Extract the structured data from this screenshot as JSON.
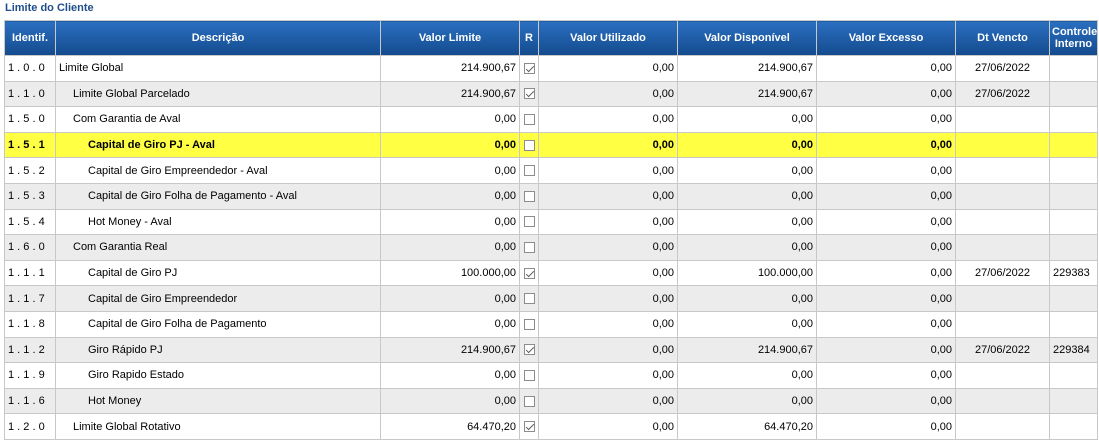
{
  "title": "Limite do Cliente",
  "headers": {
    "identif": "Identif.",
    "descricao": "Descrição",
    "valor_limite": "Valor Limite",
    "r": "R",
    "valor_utilizado": "Valor Utilizado",
    "valor_disponivel": "Valor Disponível",
    "valor_excesso": "Valor Excesso",
    "dt_vencto": "Dt Vencto",
    "controle_interno": "Controle Interno"
  },
  "rows": [
    {
      "id": "1 . 0 . 0",
      "desc": "Limite Global",
      "level": 1,
      "limite": "214.900,67",
      "r": true,
      "utilizado": "0,00",
      "disponivel": "214.900,67",
      "excesso": "0,00",
      "vencto": "27/06/2022",
      "controle": "",
      "highlight": false
    },
    {
      "id": "1 . 1 . 0",
      "desc": "Limite Global Parcelado",
      "level": 2,
      "limite": "214.900,67",
      "r": true,
      "utilizado": "0,00",
      "disponivel": "214.900,67",
      "excesso": "0,00",
      "vencto": "27/06/2022",
      "controle": "",
      "highlight": false
    },
    {
      "id": "1 . 5 . 0",
      "desc": "Com Garantia de Aval",
      "level": 2,
      "limite": "0,00",
      "r": false,
      "utilizado": "0,00",
      "disponivel": "0,00",
      "excesso": "0,00",
      "vencto": "",
      "controle": "",
      "highlight": false
    },
    {
      "id": "1 . 5 . 1",
      "desc": "Capital de Giro PJ - Aval",
      "level": 3,
      "limite": "0,00",
      "r": false,
      "utilizado": "0,00",
      "disponivel": "0,00",
      "excesso": "0,00",
      "vencto": "",
      "controle": "",
      "highlight": true
    },
    {
      "id": "1 . 5 . 2",
      "desc": "Capital de Giro Empreendedor - Aval",
      "level": 3,
      "limite": "0,00",
      "r": false,
      "utilizado": "0,00",
      "disponivel": "0,00",
      "excesso": "0,00",
      "vencto": "",
      "controle": "",
      "highlight": false
    },
    {
      "id": "1 . 5 . 3",
      "desc": "Capital de Giro Folha de Pagamento - Aval",
      "level": 3,
      "limite": "0,00",
      "r": false,
      "utilizado": "0,00",
      "disponivel": "0,00",
      "excesso": "0,00",
      "vencto": "",
      "controle": "",
      "highlight": false
    },
    {
      "id": "1 . 5 . 4",
      "desc": "Hot Money - Aval",
      "level": 3,
      "limite": "0,00",
      "r": false,
      "utilizado": "0,00",
      "disponivel": "0,00",
      "excesso": "0,00",
      "vencto": "",
      "controle": "",
      "highlight": false
    },
    {
      "id": "1 . 6 . 0",
      "desc": "Com Garantia Real",
      "level": 2,
      "limite": "0,00",
      "r": false,
      "utilizado": "0,00",
      "disponivel": "0,00",
      "excesso": "0,00",
      "vencto": "",
      "controle": "",
      "highlight": false
    },
    {
      "id": "1 . 1 . 1",
      "desc": "Capital de Giro PJ",
      "level": 3,
      "limite": "100.000,00",
      "r": true,
      "utilizado": "0,00",
      "disponivel": "100.000,00",
      "excesso": "0,00",
      "vencto": "27/06/2022",
      "controle": "229383",
      "highlight": false
    },
    {
      "id": "1 . 1 . 7",
      "desc": "Capital de Giro Empreendedor",
      "level": 3,
      "limite": "0,00",
      "r": false,
      "utilizado": "0,00",
      "disponivel": "0,00",
      "excesso": "0,00",
      "vencto": "",
      "controle": "",
      "highlight": false
    },
    {
      "id": "1 . 1 . 8",
      "desc": "Capital de Giro Folha de Pagamento",
      "level": 3,
      "limite": "0,00",
      "r": false,
      "utilizado": "0,00",
      "disponivel": "0,00",
      "excesso": "0,00",
      "vencto": "",
      "controle": "",
      "highlight": false
    },
    {
      "id": "1 . 1 . 2",
      "desc": "Giro Rápido PJ",
      "level": 3,
      "limite": "214.900,67",
      "r": true,
      "utilizado": "0,00",
      "disponivel": "214.900,67",
      "excesso": "0,00",
      "vencto": "27/06/2022",
      "controle": "229384",
      "highlight": false
    },
    {
      "id": "1 . 1 . 9",
      "desc": "Giro Rapido Estado",
      "level": 3,
      "limite": "0,00",
      "r": false,
      "utilizado": "0,00",
      "disponivel": "0,00",
      "excesso": "0,00",
      "vencto": "",
      "controle": "",
      "highlight": false
    },
    {
      "id": "1 . 1 . 6",
      "desc": "Hot Money",
      "level": 3,
      "limite": "0,00",
      "r": false,
      "utilizado": "0,00",
      "disponivel": "0,00",
      "excesso": "0,00",
      "vencto": "",
      "controle": "",
      "highlight": false
    },
    {
      "id": "1 . 2 . 0",
      "desc": "Limite Global Rotativo",
      "level": 2,
      "limite": "64.470,20",
      "r": true,
      "utilizado": "0,00",
      "disponivel": "64.470,20",
      "excesso": "0,00",
      "vencto": "",
      "controle": "",
      "highlight": false
    }
  ]
}
